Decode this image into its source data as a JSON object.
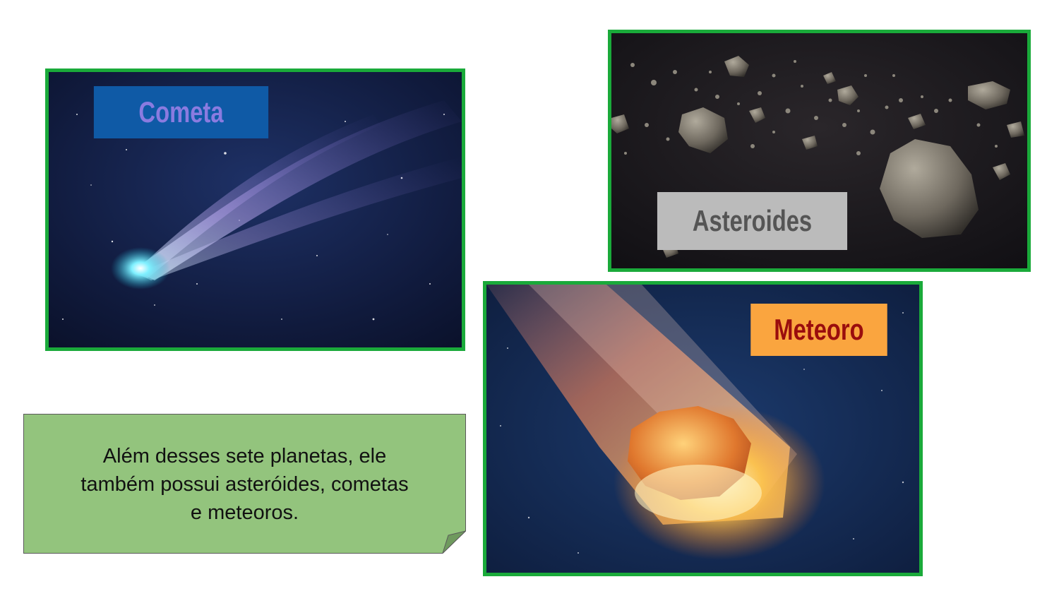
{
  "cards": {
    "comet": {
      "label": "Cometa"
    },
    "asteroids": {
      "label": "Asteroides"
    },
    "meteor": {
      "label": "Meteoro"
    }
  },
  "note": {
    "lines": [
      "Além desses sete planetas, ele",
      "também possui asteróides, cometas",
      "e meteoros."
    ]
  },
  "colors": {
    "frame_border": "#1aaa3a",
    "note_fill": "#93c47d",
    "comet_label_bg": "#0f5aa6",
    "comet_label_text": "#8a7be0",
    "asteroid_label_bg": "#bbbbbb",
    "asteroid_label_text": "#555555",
    "meteor_label_bg": "#faa53f",
    "meteor_label_text": "#9a0d0d"
  }
}
